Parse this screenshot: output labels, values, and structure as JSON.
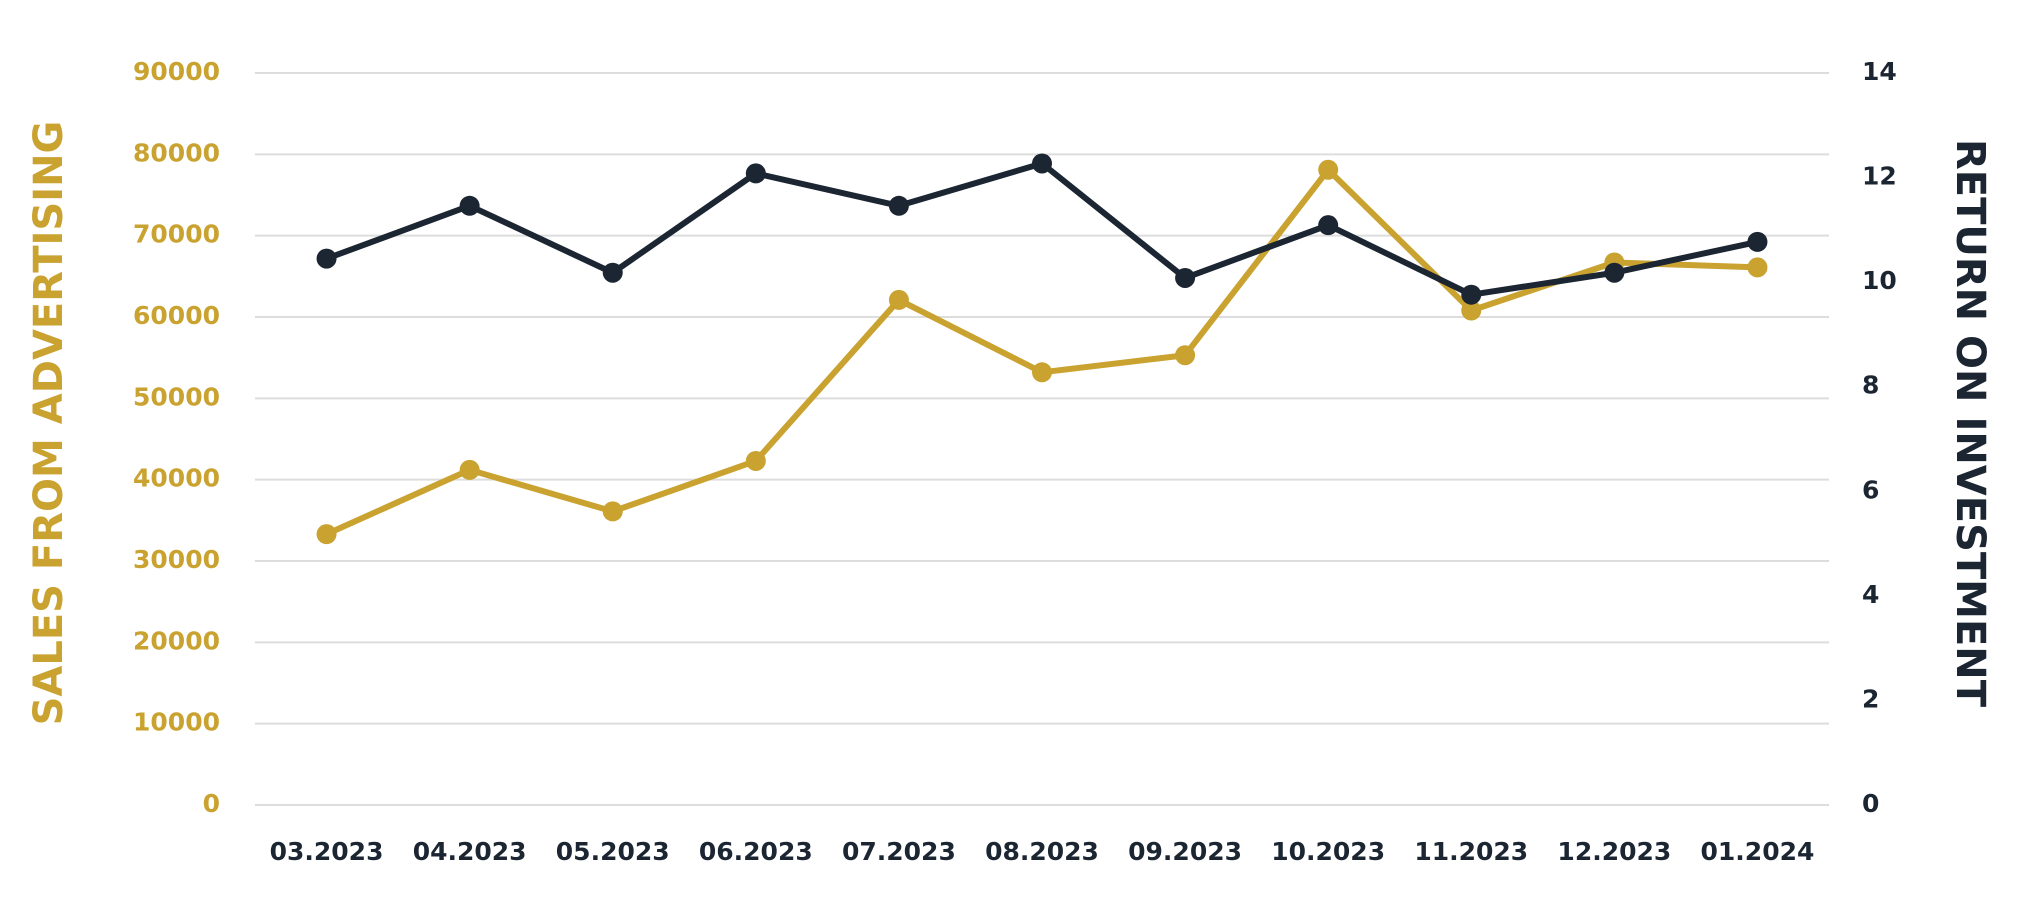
{
  "chart_data": {
    "type": "line",
    "y_label": "SALES FROM ADVERTISING",
    "y2_label": "RETURN ON INVESTMENT",
    "categories": [
      "03.2023",
      "04.2023",
      "05.2023",
      "06.2023",
      "07.2023",
      "08.2023",
      "09.2023",
      "10.2023",
      "11.2023",
      "12.2023",
      "01.2024"
    ],
    "series": [
      {
        "color": "#c9a22f",
        "values": [
          33300,
          41200,
          36100,
          42300,
          62100,
          53200,
          55300,
          78100,
          60800,
          66700,
          66100
        ]
      },
      {
        "color": "#1c2633",
        "axis": "y2",
        "values": [
          10.45,
          11.46,
          10.18,
          12.08,
          11.46,
          12.27,
          10.08,
          11.09,
          9.76,
          10.18,
          10.77
        ]
      }
    ],
    "ylim": [
      0,
      90000
    ],
    "yticks": [
      0,
      10000,
      20000,
      30000,
      40000,
      50000,
      60000,
      70000,
      80000,
      90000
    ],
    "y2lim": [
      0,
      14
    ],
    "y2ticks": [
      0,
      2,
      4,
      6,
      8,
      10,
      12,
      14
    ],
    "grid": true
  }
}
